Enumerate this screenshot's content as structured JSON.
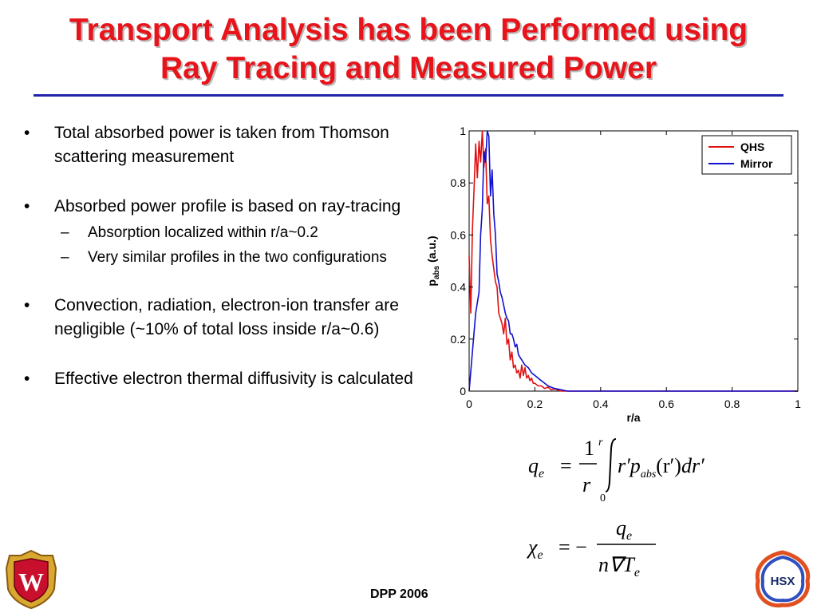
{
  "slide": {
    "title_line1": "Transport Analysis has been Performed using",
    "title_line2": "Ray Tracing and Measured Power",
    "footer": "DPP 2006",
    "logo_left_text": "W",
    "logo_right_text": "HSX",
    "bullets": [
      {
        "text": "Total absorbed power is taken from Thomson scattering measurement"
      },
      {
        "text": "Absorbed power profile is based on ray-tracing",
        "sub": [
          "Absorption localized within r/a~0.2",
          "Very similar profiles in the two configurations"
        ]
      },
      {
        "text": "Convection, radiation, electron-ion transfer are negligible (~10% of total loss inside r/a~0.6)"
      },
      {
        "text": "Effective electron thermal diffusivity is calculated"
      }
    ],
    "bullet_marker": "•",
    "sub_marker": "–"
  },
  "formulas": {
    "q": {
      "lhs": "q",
      "sub": "e",
      "eq": "=",
      "num": "1",
      "den": "r",
      "upper": "r",
      "lower": "0",
      "integrand": "r′p",
      "abs": "abs",
      "arg": "(r′)",
      "dr": "dr′"
    },
    "chi": {
      "lhs": "χ",
      "sub": "e",
      "eq": "= −",
      "num": "q",
      "num_sub": "e",
      "den": "n∇T",
      "den_sub": "e"
    }
  },
  "chart_data": {
    "type": "line",
    "xlabel": "r/a",
    "ylabel_main": "p",
    "ylabel_sub": "abs",
    "ylabel_unit": " (a.u.)",
    "xlim": [
      0,
      1
    ],
    "ylim": [
      0,
      1
    ],
    "xticks": [
      "0",
      "0.2",
      "0.4",
      "0.6",
      "0.8",
      "1"
    ],
    "yticks": [
      "0",
      "0.2",
      "0.4",
      "0.6",
      "0.8",
      "1"
    ],
    "legend_position": "top-right",
    "series": [
      {
        "name": "QHS",
        "color": "#e01010",
        "x": [
          0,
          0.005,
          0.01,
          0.015,
          0.02,
          0.025,
          0.03,
          0.035,
          0.04,
          0.045,
          0.05,
          0.055,
          0.06,
          0.065,
          0.07,
          0.075,
          0.08,
          0.085,
          0.09,
          0.095,
          0.1,
          0.105,
          0.11,
          0.115,
          0.12,
          0.125,
          0.13,
          0.135,
          0.14,
          0.145,
          0.15,
          0.155,
          0.16,
          0.165,
          0.17,
          0.175,
          0.18,
          0.185,
          0.19,
          0.195,
          0.2,
          0.21,
          0.22,
          0.23,
          0.24,
          0.25,
          0.26,
          0.28,
          0.3,
          0.35,
          0.4,
          1.0
        ],
        "y": [
          0.52,
          0.3,
          0.62,
          0.78,
          0.95,
          0.82,
          0.96,
          0.88,
          1.0,
          0.86,
          0.93,
          0.72,
          0.75,
          0.58,
          0.52,
          0.47,
          0.42,
          0.4,
          0.3,
          0.28,
          0.26,
          0.22,
          0.28,
          0.18,
          0.2,
          0.12,
          0.15,
          0.09,
          0.1,
          0.07,
          0.08,
          0.05,
          0.1,
          0.06,
          0.09,
          0.05,
          0.06,
          0.04,
          0.05,
          0.03,
          0.03,
          0.02,
          0.02,
          0.01,
          0.015,
          0.005,
          0.008,
          0.0,
          0.0,
          0.0,
          0.0,
          0.0
        ]
      },
      {
        "name": "Mirror",
        "color": "#1010d0",
        "x": [
          0,
          0.01,
          0.02,
          0.03,
          0.035,
          0.04,
          0.045,
          0.05,
          0.055,
          0.06,
          0.065,
          0.07,
          0.075,
          0.08,
          0.085,
          0.09,
          0.095,
          0.1,
          0.105,
          0.11,
          0.115,
          0.12,
          0.125,
          0.13,
          0.135,
          0.14,
          0.145,
          0.15,
          0.16,
          0.17,
          0.18,
          0.19,
          0.2,
          0.21,
          0.22,
          0.23,
          0.24,
          0.25,
          0.26,
          0.27,
          0.28,
          0.3,
          0.35,
          0.4,
          1.0
        ],
        "y": [
          0.0,
          0.15,
          0.3,
          0.38,
          0.6,
          0.7,
          0.92,
          0.88,
          1.0,
          0.98,
          0.75,
          0.85,
          0.68,
          0.6,
          0.45,
          0.42,
          0.38,
          0.36,
          0.33,
          0.3,
          0.28,
          0.27,
          0.22,
          0.22,
          0.2,
          0.17,
          0.18,
          0.14,
          0.12,
          0.1,
          0.09,
          0.07,
          0.06,
          0.05,
          0.04,
          0.03,
          0.02,
          0.015,
          0.01,
          0.008,
          0.005,
          0.0,
          0.0,
          0.0,
          0.0
        ]
      }
    ]
  }
}
